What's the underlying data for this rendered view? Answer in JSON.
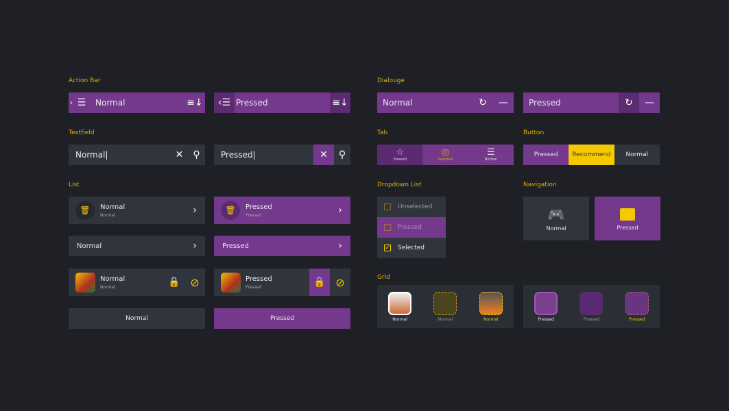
{
  "colors": {
    "background": "#1e2026",
    "purple": "#74388c",
    "purple_pressed": "#5b2a70",
    "panel": "#30353d",
    "accent_yellow": "#f6c800"
  },
  "sections": {
    "action_bar": "Action Bar",
    "dialogue": "Dialouge",
    "textfield": "Textfield",
    "tab": "Tab",
    "button": "Button",
    "list": "List",
    "dropdown": "Dropdown List",
    "navigation": "Navigation",
    "grid": "Grid"
  },
  "action_bar": {
    "normal": "Normal",
    "pressed": "Pressed",
    "icons": [
      "back-chevron-icon",
      "filter-sliders-icon",
      "sort-icon"
    ]
  },
  "dialogue": {
    "normal": "Normal",
    "pressed": "Pressed",
    "icons": [
      "refresh-icon",
      "minimize-icon"
    ]
  },
  "textfield": {
    "normal_value": "Normal",
    "pressed_value": "Pressed",
    "icons": [
      "clear-icon",
      "search-icon"
    ]
  },
  "tabs": [
    {
      "label": "Pressed",
      "icon": "star-icon"
    },
    {
      "label": "Selected",
      "icon": "cookie-icon"
    },
    {
      "label": "Normal",
      "icon": "list-icon"
    }
  ],
  "buttons": [
    {
      "label": "Pressed"
    },
    {
      "label": "Recommend"
    },
    {
      "label": "Normal"
    }
  ],
  "list": {
    "icon_rows": [
      {
        "title": "Normal",
        "subtitle": "Normal"
      },
      {
        "title": "Pressed",
        "subtitle": "Pressed"
      }
    ],
    "simple_rows": [
      "Normal",
      "Pressed"
    ],
    "app_rows": [
      {
        "title": "Normal",
        "subtitle": "Normal"
      },
      {
        "title": "Pressed",
        "subtitle": "Pressed"
      }
    ],
    "button_rows": [
      "Normal",
      "Pressed"
    ]
  },
  "dropdown": [
    {
      "label": "Unselected",
      "checked": false
    },
    {
      "label": "Pressed",
      "checked": false
    },
    {
      "label": "Selected",
      "checked": true
    }
  ],
  "navigation": [
    {
      "label": "Normal",
      "icon": "gamepad-icon"
    },
    {
      "label": "Pressed",
      "icon": "shop-bag-icon"
    }
  ],
  "grid": {
    "normal": [
      "Normal",
      "Normal",
      "Normal"
    ],
    "pressed": [
      "Pressed",
      "Pressed",
      "Pressed"
    ]
  }
}
